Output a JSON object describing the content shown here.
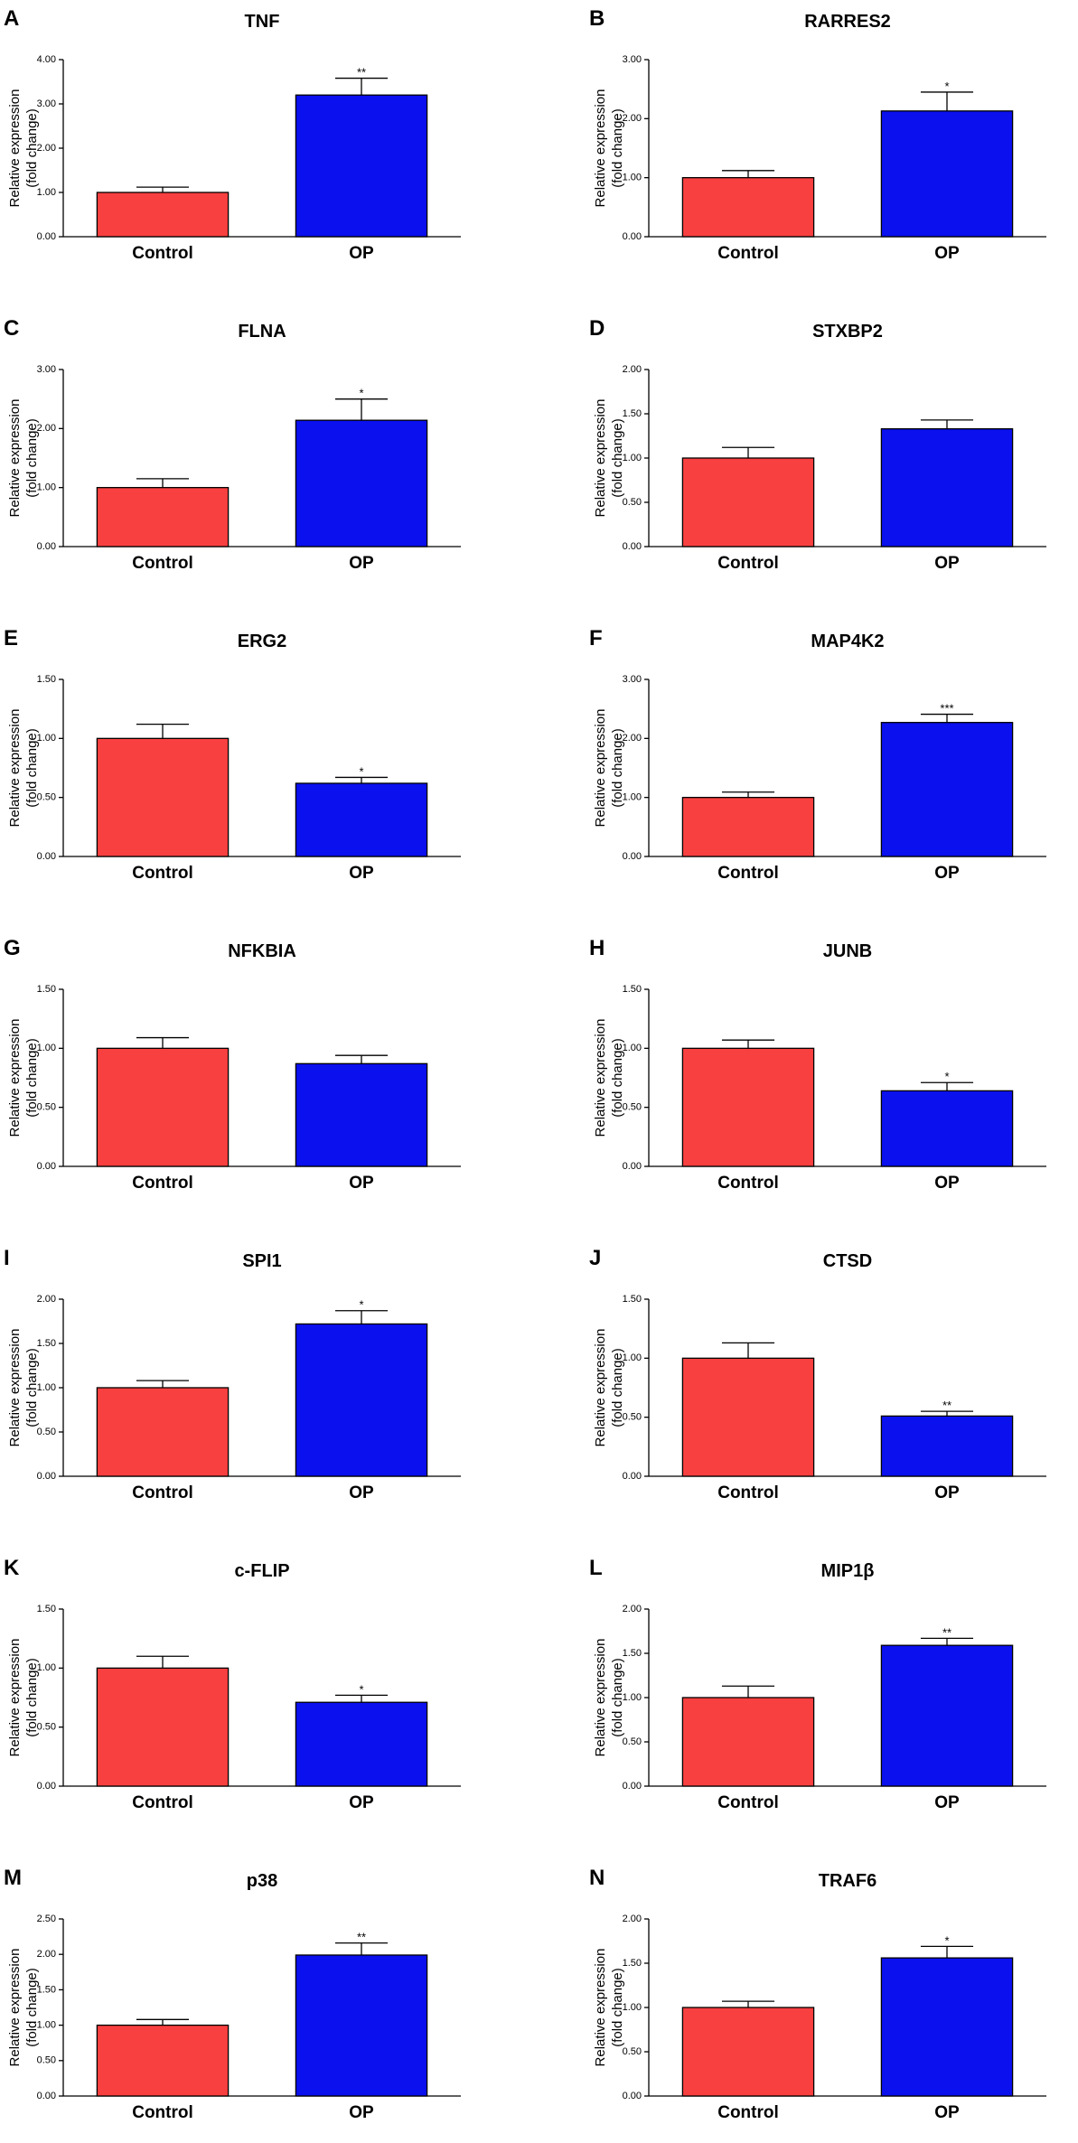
{
  "figure": {
    "y_axis_label_line1": "Relative expression",
    "y_axis_label_line2": "(fold change)",
    "bar_colors": {
      "Control": "#f94040",
      "OP": "#0a10ee"
    }
  },
  "chart_data": [
    {
      "panel": "A",
      "title": "TNF",
      "type": "bar",
      "categories": [
        "Control",
        "OP"
      ],
      "values": [
        1.0,
        3.2
      ],
      "errors": [
        0.12,
        0.38
      ],
      "significance": [
        "",
        "**"
      ],
      "ylim": [
        0,
        4
      ],
      "yticks": [
        "0.00",
        "1.00",
        "2.00",
        "3.00",
        "4.00"
      ]
    },
    {
      "panel": "B",
      "title": "RARRES2",
      "type": "bar",
      "categories": [
        "Control",
        "OP"
      ],
      "values": [
        1.0,
        2.13
      ],
      "errors": [
        0.12,
        0.32
      ],
      "significance": [
        "",
        "*"
      ],
      "ylim": [
        0,
        3
      ],
      "yticks": [
        "0.00",
        "1.00",
        "2.00",
        "3.00"
      ]
    },
    {
      "panel": "C",
      "title": "FLNA",
      "type": "bar",
      "categories": [
        "Control",
        "OP"
      ],
      "values": [
        1.0,
        2.14
      ],
      "errors": [
        0.15,
        0.36
      ],
      "significance": [
        "",
        "*"
      ],
      "ylim": [
        0,
        3
      ],
      "yticks": [
        "0.00",
        "1.00",
        "2.00",
        "3.00"
      ]
    },
    {
      "panel": "D",
      "title": "STXBP2",
      "type": "bar",
      "categories": [
        "Control",
        "OP"
      ],
      "values": [
        1.0,
        1.33
      ],
      "errors": [
        0.12,
        0.1
      ],
      "significance": [
        "",
        ""
      ],
      "ylim": [
        0,
        2
      ],
      "yticks": [
        "0.00",
        "0.50",
        "1.00",
        "1.50",
        "2.00"
      ]
    },
    {
      "panel": "E",
      "title": "ERG2",
      "type": "bar",
      "categories": [
        "Control",
        "OP"
      ],
      "values": [
        1.0,
        0.62
      ],
      "errors": [
        0.12,
        0.05
      ],
      "significance": [
        "",
        "*"
      ],
      "ylim": [
        0,
        1.5
      ],
      "yticks": [
        "0.00",
        "0.50",
        "1.00",
        "1.50"
      ]
    },
    {
      "panel": "F",
      "title": "MAP4K2",
      "type": "bar",
      "categories": [
        "Control",
        "OP"
      ],
      "values": [
        1.0,
        2.27
      ],
      "errors": [
        0.09,
        0.14
      ],
      "significance": [
        "",
        "***"
      ],
      "ylim": [
        0,
        3
      ],
      "yticks": [
        "0.00",
        "1.00",
        "2.00",
        "3.00"
      ]
    },
    {
      "panel": "G",
      "title": "NFKBIA",
      "type": "bar",
      "categories": [
        "Control",
        "OP"
      ],
      "values": [
        1.0,
        0.87
      ],
      "errors": [
        0.09,
        0.07
      ],
      "significance": [
        "",
        ""
      ],
      "ylim": [
        0,
        1.5
      ],
      "yticks": [
        "0.00",
        "0.50",
        "1.00",
        "1.50"
      ]
    },
    {
      "panel": "H",
      "title": "JUNB",
      "type": "bar",
      "categories": [
        "Control",
        "OP"
      ],
      "values": [
        1.0,
        0.64
      ],
      "errors": [
        0.07,
        0.07
      ],
      "significance": [
        "",
        "*"
      ],
      "ylim": [
        0,
        1.5
      ],
      "yticks": [
        "0.00",
        "0.50",
        "1.00",
        "1.50"
      ]
    },
    {
      "panel": "I",
      "title": "SPI1",
      "type": "bar",
      "categories": [
        "Control",
        "OP"
      ],
      "values": [
        1.0,
        1.72
      ],
      "errors": [
        0.08,
        0.15
      ],
      "significance": [
        "",
        "*"
      ],
      "ylim": [
        0,
        2
      ],
      "yticks": [
        "0.00",
        "0.50",
        "1.00",
        "1.50",
        "2.00"
      ]
    },
    {
      "panel": "J",
      "title": "CTSD",
      "type": "bar",
      "categories": [
        "Control",
        "OP"
      ],
      "values": [
        1.0,
        0.51
      ],
      "errors": [
        0.13,
        0.04
      ],
      "significance": [
        "",
        "**"
      ],
      "ylim": [
        0,
        1.5
      ],
      "yticks": [
        "0.00",
        "0.50",
        "1.00",
        "1.50"
      ]
    },
    {
      "panel": "K",
      "title": "c-FLIP",
      "type": "bar",
      "categories": [
        "Control",
        "OP"
      ],
      "values": [
        1.0,
        0.71
      ],
      "errors": [
        0.1,
        0.06
      ],
      "significance": [
        "",
        "*"
      ],
      "ylim": [
        0,
        1.5
      ],
      "yticks": [
        "0.00",
        "0.50",
        "1.00",
        "1.50"
      ]
    },
    {
      "panel": "L",
      "title": "MIP1β",
      "type": "bar",
      "categories": [
        "Control",
        "OP"
      ],
      "values": [
        1.0,
        1.59
      ],
      "errors": [
        0.13,
        0.08
      ],
      "significance": [
        "",
        "**"
      ],
      "ylim": [
        0,
        2
      ],
      "yticks": [
        "0.00",
        "0.50",
        "1.00",
        "1.50",
        "2.00"
      ]
    },
    {
      "panel": "M",
      "title": "p38",
      "type": "bar",
      "categories": [
        "Control",
        "OP"
      ],
      "values": [
        1.0,
        1.99
      ],
      "errors": [
        0.08,
        0.17
      ],
      "significance": [
        "",
        "**"
      ],
      "ylim": [
        0,
        2.5
      ],
      "yticks": [
        "0.00",
        "0.50",
        "1.00",
        "1.50",
        "2.00",
        "2.50"
      ]
    },
    {
      "panel": "N",
      "title": "TRAF6",
      "type": "bar",
      "categories": [
        "Control",
        "OP"
      ],
      "values": [
        1.0,
        1.56
      ],
      "errors": [
        0.07,
        0.13
      ],
      "significance": [
        "",
        "*"
      ],
      "ylim": [
        0,
        2
      ],
      "yticks": [
        "0.00",
        "0.50",
        "1.00",
        "1.50",
        "2.00"
      ]
    }
  ]
}
